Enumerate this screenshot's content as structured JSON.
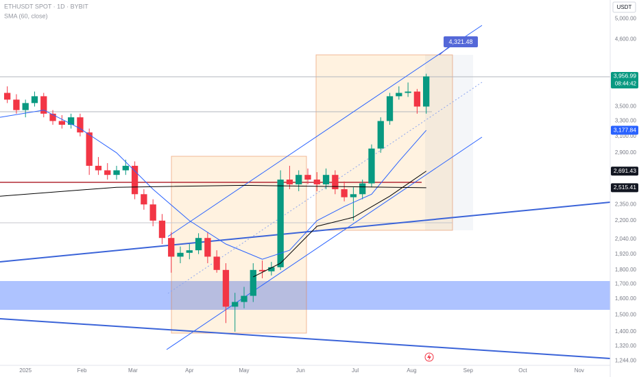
{
  "chart_data": {
    "type": "candlestick",
    "title": "ETHUSDT SPOT · 1D · BYBIT",
    "currency": "USDT",
    "annotation": "4,321.48",
    "log_scale": true,
    "grid": false,
    "up_color": "#089981",
    "down_color": "#f23645",
    "xlim": [
      -14,
      321
    ],
    "ylim": [
      1214,
      5400
    ],
    "xticks": [
      {
        "value": 0,
        "label": "2025"
      },
      {
        "value": 31,
        "label": "Feb"
      },
      {
        "value": 59,
        "label": "Mar"
      },
      {
        "value": 90,
        "label": "Apr"
      },
      {
        "value": 120,
        "label": "May"
      },
      {
        "value": 151,
        "label": "Jun"
      },
      {
        "value": 181,
        "label": "Jul"
      },
      {
        "value": 212,
        "label": "Aug"
      },
      {
        "value": 243,
        "label": "Sep"
      },
      {
        "value": 273,
        "label": "Oct"
      },
      {
        "value": 304,
        "label": "Nov"
      }
    ],
    "yticks": [
      {
        "value": 5000,
        "label": "5,000.00"
      },
      {
        "value": 4600,
        "label": "4,600.00"
      },
      {
        "value": 3500,
        "label": "3,500.00"
      },
      {
        "value": 3300,
        "label": "3,300.00"
      },
      {
        "value": 3100,
        "label": "3,100.00"
      },
      {
        "value": 2900,
        "label": "2,900.00"
      },
      {
        "value": 2350,
        "label": "2,350.00"
      },
      {
        "value": 2200,
        "label": "2,200.00"
      },
      {
        "value": 2040,
        "label": "2,040.00"
      },
      {
        "value": 1920,
        "label": "1,920.00"
      },
      {
        "value": 1800,
        "label": "1,800.00"
      },
      {
        "value": 1700,
        "label": "1,700.00"
      },
      {
        "value": 1600,
        "label": "1,600.00"
      },
      {
        "value": 1500,
        "label": "1,500.00"
      },
      {
        "value": 1400,
        "label": "1,400.00"
      },
      {
        "value": 1320,
        "label": "1,320.00"
      },
      {
        "value": 1244,
        "label": "1,244.00"
      }
    ],
    "candles": {
      "x": [
        -10,
        -5,
        0,
        5,
        10,
        15,
        20,
        25,
        30,
        35,
        40,
        45,
        50,
        55,
        60,
        65,
        70,
        75,
        80,
        85,
        90,
        95,
        100,
        105,
        110,
        115,
        120,
        125,
        130,
        135,
        140,
        145,
        150,
        155,
        160,
        165,
        170,
        175,
        180,
        185,
        190,
        195,
        200,
        205,
        210,
        215,
        220
      ],
      "open": [
        3700,
        3600,
        3450,
        3550,
        3650,
        3400,
        3300,
        3250,
        3350,
        3150,
        2750,
        2700,
        2650,
        2700,
        2750,
        2450,
        2350,
        2200,
        2050,
        1900,
        1930,
        1950,
        2050,
        1900,
        1800,
        1550,
        1580,
        1620,
        1800,
        1790,
        1820,
        2600,
        2550,
        2650,
        2600,
        2550,
        2650,
        2500,
        2420,
        2450,
        2560,
        2950,
        3300,
        3650,
        3700,
        3720,
        3500
      ],
      "high": [
        3800,
        3680,
        3600,
        3720,
        3700,
        3450,
        3380,
        3400,
        3400,
        3200,
        2850,
        2780,
        2750,
        2820,
        2800,
        2500,
        2400,
        2260,
        2100,
        1980,
        2000,
        2090,
        2100,
        1950,
        1850,
        1640,
        1680,
        1850,
        1870,
        1860,
        2700,
        2750,
        2700,
        2720,
        2680,
        2720,
        2700,
        2580,
        2520,
        2600,
        3000,
        3350,
        3700,
        3800,
        3860,
        3760,
        4000
      ],
      "low": [
        3550,
        3400,
        3350,
        3500,
        3350,
        3250,
        3200,
        3200,
        3100,
        2650,
        2650,
        2600,
        2600,
        2650,
        2400,
        2300,
        2150,
        2000,
        1780,
        1850,
        1880,
        1920,
        1850,
        1780,
        1450,
        1400,
        1540,
        1580,
        1740,
        1760,
        1800,
        2500,
        2480,
        2550,
        2480,
        2500,
        2450,
        2380,
        2200,
        2400,
        2520,
        2900,
        3250,
        3600,
        3640,
        3400,
        3400
      ],
      "close": [
        3600,
        3450,
        3550,
        3650,
        3400,
        3300,
        3250,
        3350,
        3150,
        2750,
        2700,
        2650,
        2700,
        2750,
        2450,
        2350,
        2200,
        2050,
        1900,
        1930,
        1950,
        2050,
        1900,
        1800,
        1550,
        1580,
        1620,
        1800,
        1790,
        1820,
        2600,
        2550,
        2650,
        2600,
        2550,
        2650,
        2500,
        2420,
        2450,
        2560,
        2950,
        3300,
        3650,
        3700,
        3720,
        3500,
        3956.99
      ]
    },
    "series": [
      {
        "name": "SMA (60, close)",
        "color": "#2962ff",
        "x": [
          -14,
          10,
          30,
          50,
          70,
          90,
          110,
          130,
          145,
          160,
          175,
          190,
          205,
          220
        ],
        "values": [
          3350,
          3450,
          3200,
          2900,
          2500,
          2200,
          2000,
          1880,
          1950,
          2200,
          2330,
          2450,
          2800,
          3177.84
        ]
      },
      {
        "color": "#000000",
        "x": [
          -14,
          50,
          120,
          220
        ],
        "values": [
          2430,
          2520,
          2540,
          2515.41
        ]
      },
      {
        "color": "#000000",
        "x": [
          125,
          140,
          160,
          180,
          200,
          220
        ],
        "values": [
          1750,
          1850,
          2150,
          2230,
          2430,
          2691.43
        ]
      }
    ],
    "price_tags": [
      {
        "value": 3956.99,
        "label": "3,956.99",
        "color": "#089981",
        "countdown": "08:44:42"
      },
      {
        "value": 3177.84,
        "label": "3,177.84",
        "color": "#2962ff"
      },
      {
        "value": 2691.43,
        "label": "2,691.43",
        "color": "#131722"
      },
      {
        "value": 2515.41,
        "label": "2,515.41",
        "color": "#131722"
      }
    ]
  }
}
